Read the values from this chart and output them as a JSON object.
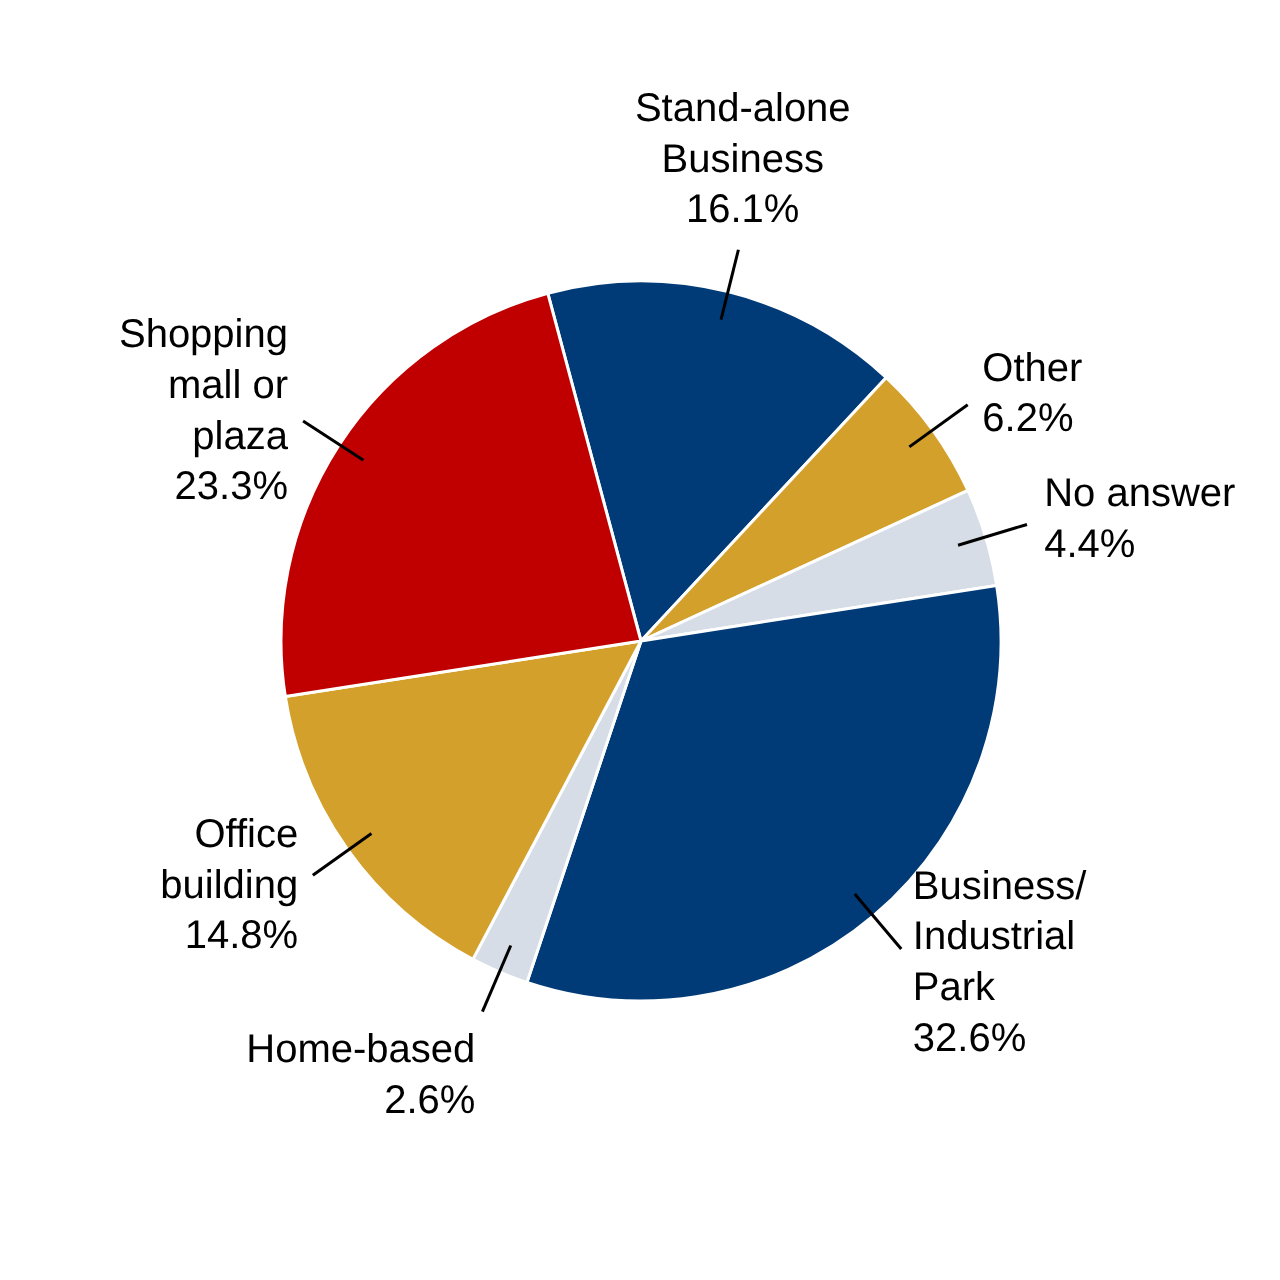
{
  "chart_data": {
    "type": "pie",
    "categories": [
      "Stand-alone Business",
      "Other",
      "No answer",
      "Business/Industrial Park",
      "Home-based",
      "Office building",
      "Shopping mall or plaza"
    ],
    "values": [
      16.1,
      6.2,
      4.4,
      32.6,
      2.6,
      14.8,
      23.3
    ],
    "value_labels": [
      "16.1%",
      "6.2%",
      "4.4%",
      "32.6%",
      "2.6%",
      "14.8%",
      "23.3%"
    ],
    "colors": [
      "#003b78",
      "#d4a02c",
      "#d6dde6",
      "#003b78",
      "#d6dde6",
      "#d4a02c",
      "#c00000"
    ]
  }
}
